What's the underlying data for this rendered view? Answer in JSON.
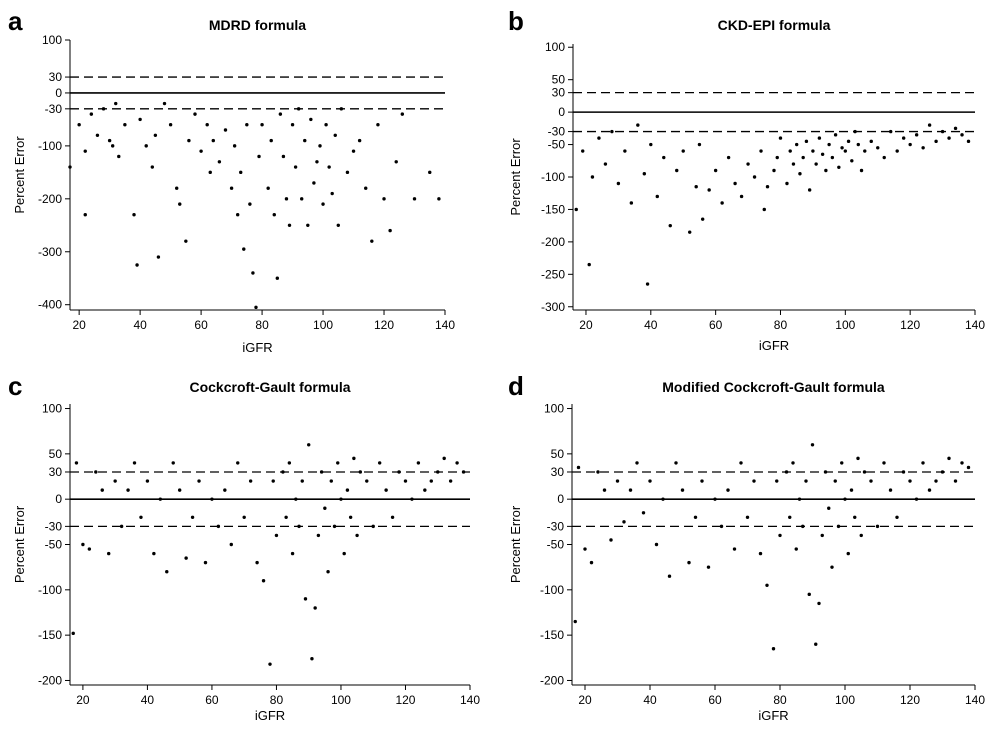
{
  "chart_data": [
    {
      "type": "scatter",
      "panel_label": "a",
      "title": "MDRD formula",
      "xlabel": "iGFR",
      "ylabel": "Percent Error",
      "xlim": [
        17,
        140
      ],
      "ylim": [
        -410,
        100
      ],
      "xticks": [
        20,
        40,
        60,
        80,
        100,
        120,
        140
      ],
      "yticks": [
        100,
        30,
        0,
        -30,
        -100,
        -200,
        -300,
        -400
      ],
      "reference_lines": [
        {
          "y": 0,
          "style": "solid"
        },
        {
          "y": 30,
          "style": "dashed"
        },
        {
          "y": -30,
          "style": "dashed"
        }
      ],
      "points": {
        "x": [
          17,
          20,
          22,
          22,
          24,
          26,
          28,
          30,
          31,
          32,
          33,
          35,
          38,
          39,
          40,
          42,
          44,
          45,
          46,
          48,
          50,
          52,
          53,
          55,
          56,
          58,
          60,
          62,
          63,
          64,
          66,
          68,
          70,
          71,
          72,
          73,
          74,
          75,
          76,
          77,
          78,
          79,
          80,
          82,
          83,
          84,
          85,
          86,
          87,
          88,
          89,
          90,
          91,
          92,
          93,
          94,
          95,
          96,
          97,
          98,
          99,
          100,
          101,
          102,
          103,
          104,
          105,
          106,
          108,
          110,
          112,
          114,
          116,
          118,
          120,
          122,
          124,
          126,
          130,
          135,
          138
        ],
        "y": [
          -140,
          -60,
          -110,
          -230,
          -40,
          -80,
          -30,
          -90,
          -100,
          -20,
          -120,
          -60,
          -230,
          -325,
          -50,
          -100,
          -140,
          -80,
          -310,
          -20,
          -60,
          -180,
          -210,
          -280,
          -90,
          -40,
          -110,
          -60,
          -150,
          -90,
          -130,
          -70,
          -180,
          -100,
          -230,
          -150,
          -295,
          -60,
          -210,
          -340,
          -405,
          -120,
          -60,
          -180,
          -90,
          -230,
          -350,
          -40,
          -120,
          -200,
          -250,
          -60,
          -140,
          -30,
          -200,
          -90,
          -250,
          -50,
          -170,
          -130,
          -100,
          -210,
          -60,
          -140,
          -190,
          -80,
          -250,
          -30,
          -150,
          -110,
          -90,
          -180,
          -280,
          -60,
          -200,
          -260,
          -130,
          -40,
          -200,
          -150,
          -200
        ]
      }
    },
    {
      "type": "scatter",
      "panel_label": "b",
      "title": "CKD-EPI formula",
      "xlabel": "iGFR",
      "ylabel": "Percent Error",
      "xlim": [
        16,
        140
      ],
      "ylim": [
        -305,
        105
      ],
      "xticks": [
        20,
        40,
        60,
        80,
        100,
        120,
        140
      ],
      "yticks": [
        100,
        50,
        30,
        0,
        -30,
        -50,
        -100,
        -150,
        -200,
        -250,
        -300
      ],
      "reference_lines": [
        {
          "y": 0,
          "style": "solid"
        },
        {
          "y": 30,
          "style": "dashed"
        },
        {
          "y": -30,
          "style": "dashed"
        }
      ],
      "points": {
        "x": [
          17,
          19,
          21,
          22,
          24,
          26,
          28,
          30,
          32,
          34,
          36,
          38,
          39,
          40,
          42,
          44,
          46,
          48,
          50,
          52,
          54,
          55,
          56,
          58,
          60,
          62,
          64,
          66,
          68,
          70,
          72,
          74,
          75,
          76,
          78,
          79,
          80,
          82,
          83,
          84,
          85,
          86,
          87,
          88,
          89,
          90,
          91,
          92,
          93,
          94,
          95,
          96,
          97,
          98,
          99,
          100,
          101,
          102,
          103,
          104,
          105,
          106,
          108,
          110,
          112,
          114,
          116,
          118,
          120,
          122,
          124,
          126,
          128,
          130,
          132,
          134,
          136,
          138
        ],
        "y": [
          -150,
          -60,
          -235,
          -100,
          -40,
          -80,
          -30,
          -110,
          -60,
          -140,
          -20,
          -95,
          -265,
          -50,
          -130,
          -70,
          -175,
          -90,
          -60,
          -185,
          -115,
          -50,
          -165,
          -120,
          -90,
          -140,
          -70,
          -110,
          -130,
          -80,
          -100,
          -60,
          -150,
          -115,
          -90,
          -70,
          -40,
          -110,
          -60,
          -80,
          -50,
          -95,
          -70,
          -45,
          -120,
          -60,
          -80,
          -40,
          -65,
          -90,
          -50,
          -70,
          -35,
          -85,
          -55,
          -60,
          -45,
          -75,
          -30,
          -50,
          -90,
          -60,
          -45,
          -55,
          -70,
          -30,
          -60,
          -40,
          -50,
          -35,
          -55,
          -20,
          -45,
          -30,
          -40,
          -25,
          -35,
          -45
        ]
      }
    },
    {
      "type": "scatter",
      "panel_label": "c",
      "title": "Cockcroft-Gault formula",
      "xlabel": "iGFR",
      "ylabel": "Percent Error",
      "xlim": [
        16,
        140
      ],
      "ylim": [
        -205,
        105
      ],
      "xticks": [
        20,
        40,
        60,
        80,
        100,
        120,
        140
      ],
      "yticks": [
        100,
        50,
        30,
        0,
        -30,
        -50,
        -100,
        -150,
        -200
      ],
      "reference_lines": [
        {
          "y": 0,
          "style": "solid"
        },
        {
          "y": 30,
          "style": "dashed"
        },
        {
          "y": -30,
          "style": "dashed"
        }
      ],
      "points": {
        "x": [
          17,
          18,
          20,
          22,
          24,
          26,
          28,
          30,
          32,
          34,
          36,
          38,
          40,
          42,
          44,
          46,
          48,
          50,
          52,
          54,
          56,
          58,
          60,
          62,
          64,
          66,
          68,
          70,
          72,
          74,
          76,
          78,
          79,
          80,
          82,
          83,
          84,
          85,
          86,
          87,
          88,
          89,
          90,
          91,
          92,
          93,
          94,
          95,
          96,
          97,
          98,
          99,
          100,
          101,
          102,
          103,
          104,
          105,
          106,
          108,
          110,
          112,
          114,
          116,
          118,
          120,
          122,
          124,
          126,
          128,
          130,
          132,
          134,
          136,
          138
        ],
        "y": [
          -148,
          40,
          -50,
          -55,
          30,
          10,
          -60,
          20,
          -30,
          10,
          40,
          -20,
          20,
          -60,
          0,
          -80,
          40,
          10,
          -65,
          -20,
          20,
          -70,
          0,
          -30,
          10,
          -50,
          40,
          -20,
          20,
          -70,
          -90,
          -182,
          20,
          -40,
          30,
          -20,
          40,
          -60,
          0,
          -30,
          20,
          -110,
          60,
          -176,
          -120,
          -40,
          30,
          -10,
          -80,
          20,
          -30,
          40,
          0,
          -60,
          10,
          -20,
          45,
          -40,
          30,
          20,
          -30,
          40,
          10,
          -20,
          30,
          20,
          0,
          40,
          10,
          20,
          30,
          45,
          20,
          40,
          30
        ]
      }
    },
    {
      "type": "scatter",
      "panel_label": "d",
      "title": "Modified Cockcroft-Gault formula",
      "xlabel": "iGFR",
      "ylabel": "Percent Error",
      "xlim": [
        16,
        140
      ],
      "ylim": [
        -205,
        105
      ],
      "xticks": [
        20,
        40,
        60,
        80,
        100,
        120,
        140
      ],
      "yticks": [
        100,
        50,
        30,
        0,
        -30,
        -50,
        -100,
        -150,
        -200
      ],
      "reference_lines": [
        {
          "y": 0,
          "style": "solid"
        },
        {
          "y": 30,
          "style": "dashed"
        },
        {
          "y": -30,
          "style": "dashed"
        }
      ],
      "points": {
        "x": [
          17,
          18,
          20,
          22,
          24,
          26,
          28,
          30,
          32,
          34,
          36,
          38,
          40,
          42,
          44,
          46,
          48,
          50,
          52,
          54,
          56,
          58,
          60,
          62,
          64,
          66,
          68,
          70,
          72,
          74,
          76,
          78,
          79,
          80,
          82,
          83,
          84,
          85,
          86,
          87,
          88,
          89,
          90,
          91,
          92,
          93,
          94,
          95,
          96,
          97,
          98,
          99,
          100,
          101,
          102,
          103,
          104,
          105,
          106,
          108,
          110,
          112,
          114,
          116,
          118,
          120,
          122,
          124,
          126,
          128,
          130,
          132,
          134,
          136,
          138
        ],
        "y": [
          -135,
          35,
          -55,
          -70,
          30,
          10,
          -45,
          20,
          -25,
          10,
          40,
          -15,
          20,
          -50,
          0,
          -85,
          40,
          10,
          -70,
          -20,
          20,
          -75,
          0,
          -30,
          10,
          -55,
          40,
          -20,
          20,
          -60,
          -95,
          -165,
          20,
          -40,
          30,
          -20,
          40,
          -55,
          0,
          -30,
          20,
          -105,
          60,
          -160,
          -115,
          -40,
          30,
          -10,
          -75,
          20,
          -30,
          40,
          0,
          -60,
          10,
          -20,
          45,
          -40,
          30,
          20,
          -30,
          40,
          10,
          -20,
          30,
          20,
          0,
          40,
          10,
          20,
          30,
          45,
          20,
          40,
          35
        ]
      }
    }
  ]
}
